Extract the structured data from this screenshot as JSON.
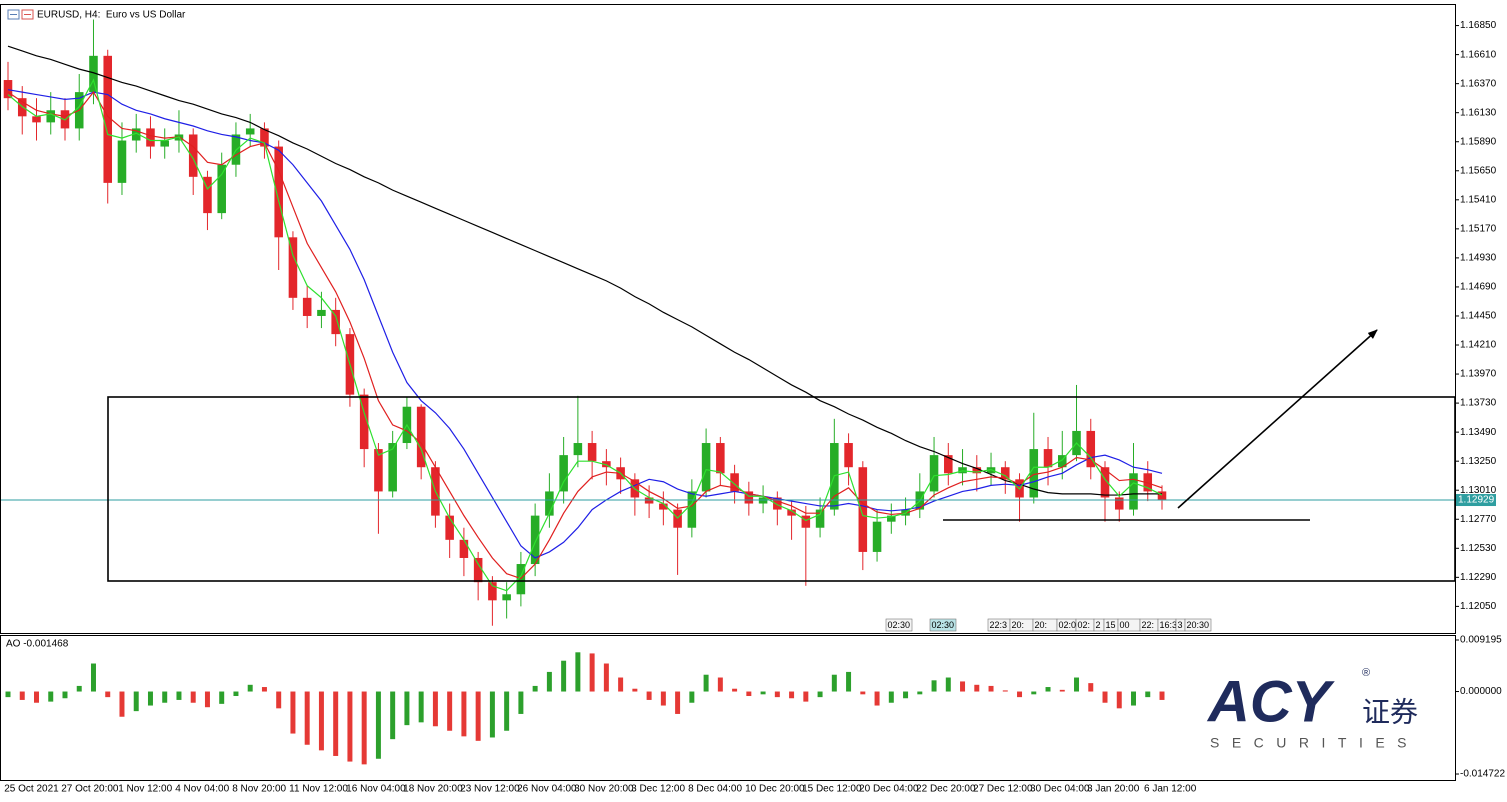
{
  "header": {
    "title": "EURUSD, H4:  Euro vs US Dollar"
  },
  "chart_data": [
    {
      "type": "candlestick",
      "categories": [
        null,
        "25 Oct 2021",
        null,
        null,
        null,
        "27 Oct 20:00",
        null,
        null,
        null,
        "1 Nov 12:00",
        null,
        null,
        null,
        "4 Nov 04:00",
        null,
        null,
        null,
        "8 Nov 20:00",
        null,
        null,
        null,
        "11 Nov 12:00",
        null,
        null,
        null,
        "16 Nov 04:00",
        null,
        null,
        null,
        "18 Nov 20:00",
        null,
        null,
        null,
        "23 Nov 12:00",
        null,
        null,
        null,
        "26 Nov 04:00",
        null,
        null,
        null,
        "30 Nov 20:00",
        null,
        null,
        null,
        "3 Dec 12:00",
        null,
        null,
        null,
        "8 Dec 04:00",
        null,
        null,
        null,
        "10 Dec 20:00",
        null,
        null,
        null,
        "15 Dec 12:00",
        null,
        null,
        null,
        "20 Dec 04:00",
        null,
        null,
        null,
        "22 Dec 20:00",
        null,
        null,
        null,
        "27 Dec 12:00",
        null,
        null,
        null,
        "30 Dec 04:00",
        null,
        null,
        null,
        "3 Jan 20:00",
        null,
        null,
        null,
        "6 Jan 12:00"
      ],
      "open": [
        1.164,
        1.1625,
        1.161,
        1.1605,
        1.1615,
        1.16,
        1.163,
        1.166,
        1.1555,
        1.159,
        1.16,
        1.1585,
        1.159,
        1.1595,
        1.156,
        1.153,
        1.157,
        1.1595,
        1.16,
        1.1585,
        1.151,
        1.146,
        1.1445,
        1.145,
        1.143,
        1.138,
        1.1335,
        1.13,
        1.134,
        1.137,
        1.132,
        1.128,
        1.126,
        1.1245,
        1.1225,
        1.121,
        1.1215,
        1.124,
        1.128,
        1.13,
        1.133,
        1.134,
        1.1325,
        1.132,
        1.131,
        1.1295,
        1.129,
        1.1285,
        1.127,
        1.13,
        1.134,
        1.1315,
        1.13,
        1.129,
        1.1295,
        1.1285,
        1.128,
        1.127,
        1.1285,
        1.134,
        1.132,
        1.125,
        1.1275,
        1.128,
        1.1285,
        1.13,
        1.133,
        1.1315,
        1.132,
        1.1315,
        1.132,
        1.131,
        1.1295,
        1.1335,
        1.132,
        1.133,
        1.135,
        1.132,
        1.1295,
        1.1285,
        1.1315,
        1.13
      ],
      "high": [
        1.1655,
        1.1635,
        1.1625,
        1.163,
        1.1625,
        1.1645,
        1.169,
        1.1665,
        1.1605,
        1.1612,
        1.161,
        1.16,
        1.1615,
        1.16,
        1.1565,
        1.158,
        1.1605,
        1.1612,
        1.1605,
        1.159,
        1.1515,
        1.147,
        1.1465,
        1.146,
        1.1435,
        1.1385,
        1.134,
        1.135,
        1.1378,
        1.1372,
        1.1325,
        1.129,
        1.127,
        1.125,
        1.123,
        1.1225,
        1.125,
        1.129,
        1.1315,
        1.1345,
        1.1379,
        1.135,
        1.1335,
        1.1328,
        1.1315,
        1.1305,
        1.13,
        1.129,
        1.131,
        1.1352,
        1.1345,
        1.1322,
        1.1308,
        1.1305,
        1.13,
        1.1292,
        1.1288,
        1.1295,
        1.136,
        1.1348,
        1.1325,
        1.1285,
        1.129,
        1.1295,
        1.1315,
        1.1345,
        1.134,
        1.1335,
        1.133,
        1.1332,
        1.1325,
        1.1315,
        1.1365,
        1.1345,
        1.135,
        1.1388,
        1.136,
        1.1325,
        1.13,
        1.134,
        1.1325,
        1.1305
      ],
      "low": [
        1.1615,
        1.1595,
        1.159,
        1.1595,
        1.159,
        1.159,
        1.162,
        1.1538,
        1.1545,
        1.158,
        1.1575,
        1.1575,
        1.158,
        1.1545,
        1.1516,
        1.1525,
        1.156,
        1.1585,
        1.1575,
        1.1483,
        1.145,
        1.1435,
        1.1435,
        1.142,
        1.137,
        1.132,
        1.1265,
        1.1295,
        1.1335,
        1.131,
        1.127,
        1.1245,
        1.123,
        1.121,
        1.1189,
        1.1195,
        1.1205,
        1.123,
        1.127,
        1.129,
        1.132,
        1.131,
        1.1305,
        1.1298,
        1.128,
        1.1278,
        1.1272,
        1.1231,
        1.1262,
        1.1295,
        1.1305,
        1.129,
        1.128,
        1.1282,
        1.1272,
        1.126,
        1.1222,
        1.1262,
        1.128,
        1.1305,
        1.1235,
        1.1242,
        1.1265,
        1.1272,
        1.1278,
        1.1295,
        1.1305,
        1.1305,
        1.13,
        1.1305,
        1.1298,
        1.1275,
        1.129,
        1.1305,
        1.131,
        1.1325,
        1.131,
        1.1275,
        1.1275,
        1.128,
        1.1292,
        1.1285
      ],
      "close": [
        1.1625,
        1.161,
        1.1605,
        1.1615,
        1.16,
        1.163,
        1.166,
        1.1555,
        1.159,
        1.16,
        1.1585,
        1.159,
        1.1595,
        1.156,
        1.153,
        1.157,
        1.1595,
        1.16,
        1.1585,
        1.151,
        1.146,
        1.1445,
        1.145,
        1.143,
        1.138,
        1.1335,
        1.13,
        1.134,
        1.137,
        1.132,
        1.128,
        1.126,
        1.1245,
        1.1225,
        1.121,
        1.1215,
        1.124,
        1.128,
        1.13,
        1.133,
        1.134,
        1.1325,
        1.132,
        1.131,
        1.1295,
        1.129,
        1.1285,
        1.127,
        1.13,
        1.134,
        1.1315,
        1.13,
        1.129,
        1.1295,
        1.1285,
        1.128,
        1.127,
        1.1285,
        1.134,
        1.132,
        1.125,
        1.1275,
        1.128,
        1.1285,
        1.13,
        1.133,
        1.1315,
        1.132,
        1.1315,
        1.132,
        1.131,
        1.1295,
        1.1335,
        1.132,
        1.133,
        1.135,
        1.132,
        1.1295,
        1.1285,
        1.1315,
        1.13,
        1.12929
      ],
      "up_color": "#27ad27",
      "down_color": "#e3262b",
      "lines": [
        {
          "color": "#000000",
          "values": [
            1.1668,
            1.1664,
            1.166,
            1.1657,
            1.1653,
            1.1649,
            1.1646,
            1.1642,
            1.1638,
            1.1635,
            1.1631,
            1.1627,
            1.1623,
            1.162,
            1.1616,
            1.1612,
            1.1609,
            1.1605,
            1.1599,
            1.1594,
            1.1588,
            1.1583,
            1.1577,
            1.1571,
            1.1566,
            1.156,
            1.1555,
            1.1549,
            1.1544,
            1.1539,
            1.1534,
            1.1529,
            1.1524,
            1.1519,
            1.1514,
            1.1509,
            1.1504,
            1.1499,
            1.1494,
            1.1489,
            1.1484,
            1.1479,
            1.1474,
            1.1468,
            1.1461,
            1.1455,
            1.1448,
            1.1442,
            1.1436,
            1.1429,
            1.1422,
            1.1415,
            1.1409,
            1.1402,
            1.1395,
            1.1388,
            1.1382,
            1.1375,
            1.137,
            1.1364,
            1.1359,
            1.1353,
            1.1348,
            1.1342,
            1.1337,
            1.1333,
            1.1328,
            1.1323,
            1.1319,
            1.1314,
            1.1309,
            1.1306,
            1.1302,
            1.1299,
            1.1298,
            1.1298,
            1.1298,
            1.1297,
            1.1297,
            1.1298,
            1.1298,
            1.1298
          ]
        },
        {
          "color": "#1f1fe6",
          "values": [
            1.1632,
            1.163,
            1.1628,
            1.1626,
            1.1624,
            1.1625,
            1.163,
            1.1628,
            1.162,
            1.1615,
            1.1612,
            1.1608,
            1.1605,
            1.1602,
            1.1598,
            1.1595,
            1.1593,
            1.159,
            1.1588,
            1.1582,
            1.157,
            1.1555,
            1.154,
            1.152,
            1.15,
            1.1475,
            1.1445,
            1.1415,
            1.139,
            1.1375,
            1.1365,
            1.1352,
            1.1335,
            1.1315,
            1.1295,
            1.1275,
            1.1255,
            1.1245,
            1.125,
            1.1258,
            1.127,
            1.1285,
            1.1293,
            1.13,
            1.1305,
            1.131,
            1.1308,
            1.1302,
            1.1298,
            1.1296,
            1.1298,
            1.13,
            1.1298,
            1.1296,
            1.1294,
            1.1292,
            1.129,
            1.1288,
            1.1288,
            1.129,
            1.1288,
            1.1285,
            1.1284,
            1.1285,
            1.1287,
            1.1292,
            1.1296,
            1.13,
            1.1302,
            1.1305,
            1.1306,
            1.1305,
            1.1308,
            1.1312,
            1.1315,
            1.1322,
            1.1328,
            1.133,
            1.1326,
            1.132,
            1.1318,
            1.1315
          ]
        },
        {
          "color": "#e02020",
          "values": [
            1.163,
            1.1622,
            1.1615,
            1.1612,
            1.161,
            1.1615,
            1.163,
            1.161,
            1.16,
            1.1598,
            1.1594,
            1.1592,
            1.1593,
            1.1585,
            1.1572,
            1.157,
            1.1578,
            1.1585,
            1.1588,
            1.1565,
            1.1535,
            1.1505,
            1.1485,
            1.1465,
            1.144,
            1.141,
            1.1375,
            1.1355,
            1.135,
            1.134,
            1.132,
            1.13,
            1.128,
            1.1262,
            1.1245,
            1.1232,
            1.1228,
            1.124,
            1.126,
            1.1282,
            1.13,
            1.1312,
            1.1316,
            1.1315,
            1.1308,
            1.13,
            1.1294,
            1.1286,
            1.1288,
            1.13,
            1.1305,
            1.1303,
            1.1298,
            1.1296,
            1.1292,
            1.1288,
            1.1282,
            1.1282,
            1.1296,
            1.1303,
            1.129,
            1.1283,
            1.1281,
            1.1282,
            1.1286,
            1.1297,
            1.1303,
            1.1308,
            1.131,
            1.1312,
            1.1311,
            1.1306,
            1.1314,
            1.1316,
            1.132,
            1.1328,
            1.1326,
            1.1318,
            1.1309,
            1.131,
            1.1307,
            1.1303
          ]
        },
        {
          "color": "#2ee02e",
          "values": [
            1.1628,
            1.1618,
            1.161,
            1.1612,
            1.1607,
            1.1618,
            1.164,
            1.1595,
            1.1592,
            1.1596,
            1.159,
            1.159,
            1.1593,
            1.1575,
            1.155,
            1.1562,
            1.1582,
            1.1592,
            1.1588,
            1.154,
            1.1495,
            1.147,
            1.146,
            1.1445,
            1.1405,
            1.1365,
            1.133,
            1.1335,
            1.1355,
            1.1335,
            1.13,
            1.1278,
            1.126,
            1.124,
            1.1222,
            1.1218,
            1.123,
            1.1258,
            1.1282,
            1.1308,
            1.1325,
            1.1325,
            1.1322,
            1.1315,
            1.1302,
            1.1295,
            1.129,
            1.1278,
            1.129,
            1.1318,
            1.1316,
            1.1306,
            1.1296,
            1.1296,
            1.1289,
            1.1284,
            1.1276,
            1.1281,
            1.1313,
            1.1316,
            1.128,
            1.1278,
            1.1279,
            1.1282,
            1.1292,
            1.1313,
            1.1314,
            1.1317,
            1.1316,
            1.1318,
            1.1313,
            1.1302,
            1.132,
            1.132,
            1.1326,
            1.134,
            1.1328,
            1.131,
            1.1296,
            1.1307,
            1.1303,
            1.1297
          ]
        }
      ],
      "ylim": [
        1.1183,
        1.1702
      ],
      "yticks": [
        {
          "value": 1.1685,
          "label": "1.16850"
        },
        {
          "value": 1.1661,
          "label": "1.16610"
        },
        {
          "value": 1.1637,
          "label": "1.16370"
        },
        {
          "value": 1.1613,
          "label": "1.16130"
        },
        {
          "value": 1.1589,
          "label": "1.15890"
        },
        {
          "value": 1.1565,
          "label": "1.15650"
        },
        {
          "value": 1.1541,
          "label": "1.15410"
        },
        {
          "value": 1.1517,
          "label": "1.15170"
        },
        {
          "value": 1.1493,
          "label": "1.14930"
        },
        {
          "value": 1.1469,
          "label": "1.14690"
        },
        {
          "value": 1.1445,
          "label": "1.14450"
        },
        {
          "value": 1.1421,
          "label": "1.14210"
        },
        {
          "value": 1.1397,
          "label": "1.13970"
        },
        {
          "value": 1.1373,
          "label": "1.13730"
        },
        {
          "value": 1.1349,
          "label": "1.13490"
        },
        {
          "value": 1.1325,
          "label": "1.13250"
        },
        {
          "value": 1.1301,
          "label": "1.13010"
        },
        {
          "value": 1.1277,
          "label": "1.12770"
        },
        {
          "value": 1.1253,
          "label": "1.12530"
        },
        {
          "value": 1.1229,
          "label": "1.12290"
        },
        {
          "value": 1.1205,
          "label": "1.12050"
        }
      ],
      "last_price": 1.12929,
      "last_price_color": "#2e9ea0",
      "time_marks": [
        "02:30",
        "02:30",
        "22:3",
        "20:",
        "20:",
        "02:0",
        "02:",
        "2",
        "15",
        "00",
        "22:",
        "16:3",
        "3",
        "20:30"
      ]
    },
    {
      "type": "bar",
      "title": "AO -0.001468",
      "values": [
        -0.001,
        -0.0015,
        -0.002,
        -0.0018,
        -0.0012,
        0.001,
        0.005,
        -0.001,
        -0.0045,
        -0.0035,
        -0.0025,
        -0.002,
        -0.0015,
        -0.002,
        -0.0028,
        -0.0022,
        -0.0008,
        0.0012,
        0.0008,
        -0.003,
        -0.0075,
        -0.0095,
        -0.0105,
        -0.0115,
        -0.0125,
        -0.013,
        -0.012,
        -0.0085,
        -0.006,
        -0.0055,
        -0.0062,
        -0.007,
        -0.008,
        -0.0088,
        -0.0082,
        -0.007,
        -0.004,
        0.001,
        0.0035,
        0.0055,
        0.007,
        0.0068,
        0.005,
        0.0025,
        0.0005,
        -0.0015,
        -0.0025,
        -0.004,
        -0.002,
        0.003,
        0.0025,
        0.0005,
        -0.0008,
        -0.0005,
        -0.001,
        -0.0012,
        -0.0018,
        -0.001,
        0.003,
        0.0035,
        -0.0005,
        -0.0025,
        -0.002,
        -0.0012,
        -0.0005,
        0.002,
        0.0025,
        0.0018,
        0.0012,
        0.001,
        0.0002,
        -0.001,
        -0.0005,
        0.0008,
        0.0003,
        0.0025,
        0.0015,
        -0.002,
        -0.003,
        -0.0025,
        -0.001,
        -0.0015
      ],
      "up_color": "#2ca02c",
      "down_color": "#e53935",
      "ylim": [
        -0.01579,
        0.00991
      ],
      "yticks": [
        0.009195,
        {
          "value": 0,
          "label": "0.000000"
        },
        -0.014722
      ]
    }
  ],
  "logo": {
    "brand": "ACY",
    "cn": "证券",
    "sub": "SECURITIES",
    "reg": "®"
  }
}
